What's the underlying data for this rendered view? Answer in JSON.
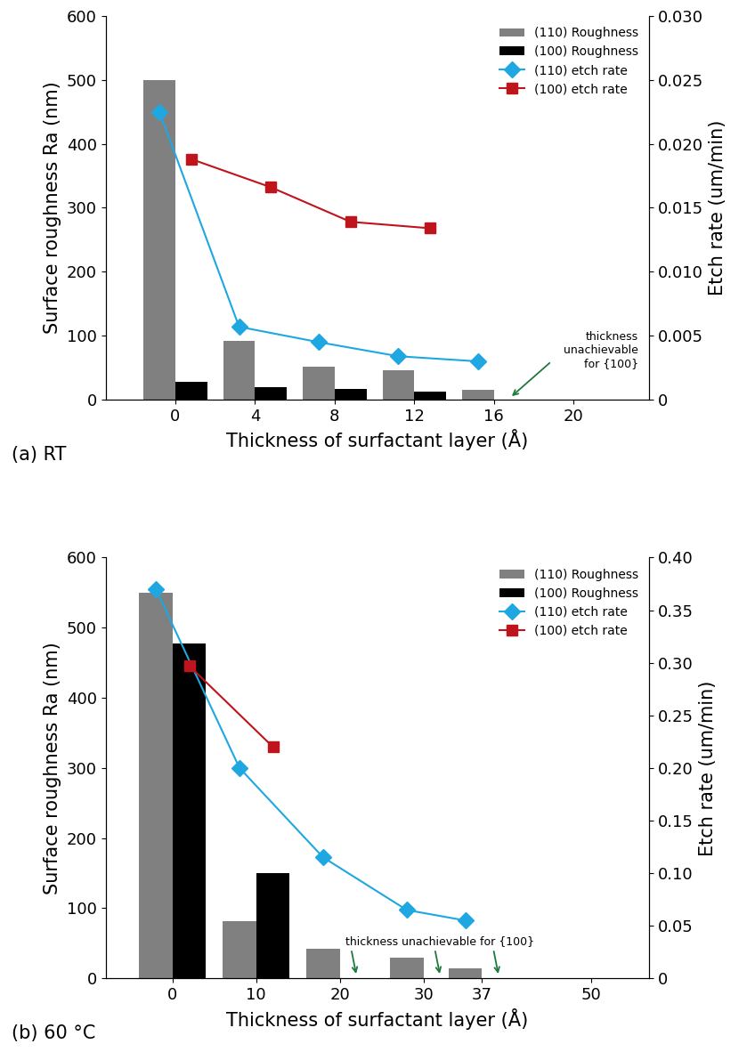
{
  "chart_data": [
    {
      "type": "bar",
      "title": "(a) RT",
      "x_label": "Thickness of surfactant layer (Å)",
      "y_label": "Surface roughness Ra (nm)",
      "y2_label": "Etch rate (um/min)",
      "xlim": [
        -3.5,
        23.8
      ],
      "xticks": [
        0,
        4,
        8,
        12,
        16,
        20
      ],
      "ylim": [
        0,
        600
      ],
      "yticks": [
        0,
        100,
        200,
        300,
        400,
        500,
        600
      ],
      "y2lim": [
        0,
        0.03
      ],
      "y2ticks": [
        0,
        0.005,
        {
          "value": 0.01,
          "label": "0.010"
        },
        0.015,
        {
          "value": 0.02,
          "label": "0.020"
        },
        0.025,
        {
          "value": 0.03,
          "label": "0.030"
        }
      ],
      "legend": "upper right",
      "series": [
        {
          "name": "(110) Roughness",
          "type": "bar",
          "color": "#808080",
          "x": [
            0,
            4,
            8,
            12,
            16
          ],
          "values": [
            500,
            92,
            52,
            46,
            15
          ]
        },
        {
          "name": "(100) Roughness",
          "type": "bar",
          "color": "#000000",
          "x": [
            0,
            4,
            8,
            12
          ],
          "values": [
            28,
            20,
            17,
            13
          ]
        },
        {
          "name": "(110) etch rate",
          "type": "line",
          "axis": "y2",
          "color": "#1ea7e1",
          "marker": "diamond",
          "x": [
            0,
            4,
            8,
            12,
            16
          ],
          "values": [
            0.0225,
            0.0057,
            0.0045,
            0.0034,
            0.003
          ]
        },
        {
          "name": "(100) etch rate",
          "type": "line",
          "axis": "y2",
          "color": "#c0141c",
          "marker": "square",
          "x": [
            0,
            4,
            8,
            12
          ],
          "values": [
            0.0188,
            0.0166,
            0.0139,
            0.0134
          ]
        }
      ],
      "annotations": [
        {
          "text": "thickness\nunachievable\nfor {100}",
          "points": [
            16
          ]
        }
      ]
    },
    {
      "type": "bar",
      "title": "(b) 60 °C",
      "x_label": "Thickness of surfactant layer (Å)",
      "y_label": "Surface roughness Ra (nm)",
      "y2_label": "Etch rate (um/min)",
      "xlim": [
        -8,
        57
      ],
      "xticks": [
        0,
        10,
        20,
        30,
        37,
        50
      ],
      "ylim": [
        0,
        600
      ],
      "yticks": [
        0,
        100,
        200,
        300,
        400,
        500,
        600
      ],
      "y2lim": [
        0,
        0.4
      ],
      "y2ticks": [
        0,
        0.05,
        {
          "value": 0.1,
          "label": "0.10"
        },
        0.15,
        {
          "value": 0.2,
          "label": "0.20"
        },
        0.25,
        {
          "value": 0.3,
          "label": "0.30"
        },
        0.35,
        {
          "value": 0.4,
          "label": "0.40"
        }
      ],
      "legend": "upper right",
      "series": [
        {
          "name": "(110) Roughness",
          "type": "bar",
          "color": "#808080",
          "x": [
            0,
            10,
            20,
            30,
            37
          ],
          "values": [
            550,
            82,
            42,
            30,
            14
          ]
        },
        {
          "name": "(100) Roughness",
          "type": "bar",
          "color": "#000000",
          "x": [
            0,
            10
          ],
          "values": [
            478,
            150
          ]
        },
        {
          "name": "(110) etch rate",
          "type": "line",
          "axis": "y2",
          "color": "#1ea7e1",
          "marker": "diamond",
          "x": [
            0,
            10,
            20,
            30,
            37
          ],
          "values": [
            0.37,
            0.2,
            0.115,
            0.065,
            0.055
          ]
        },
        {
          "name": "(100) etch rate",
          "type": "line",
          "axis": "y2",
          "color": "#c0141c",
          "marker": "square",
          "x": [
            0,
            10
          ],
          "values": [
            0.297,
            0.22
          ]
        }
      ],
      "annotations": [
        {
          "text": "thickness unachievable for {100}",
          "points": [
            20,
            30,
            37
          ]
        }
      ]
    }
  ]
}
